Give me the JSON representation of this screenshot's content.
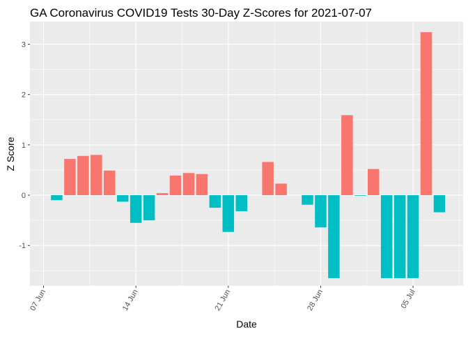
{
  "chart_data": {
    "type": "bar",
    "title": "GA Coronavirus COVID19 Tests 30-Day Z-Scores for 2021-07-07",
    "xlabel": "Date",
    "ylabel": "Z Score",
    "ylim": [
      -1.8,
      3.45
    ],
    "y_ticks": [
      -1,
      0,
      1,
      2,
      3
    ],
    "x_ticks": [
      {
        "label": "07 Jun",
        "index": 0
      },
      {
        "label": "14 Jun",
        "index": 7
      },
      {
        "label": "21 Jun",
        "index": 14
      },
      {
        "label": "28 Jun",
        "index": 21
      },
      {
        "label": "05 Jul",
        "index": 28
      }
    ],
    "dates": [
      "2021-06-08",
      "2021-06-09",
      "2021-06-10",
      "2021-06-11",
      "2021-06-12",
      "2021-06-13",
      "2021-06-14",
      "2021-06-15",
      "2021-06-16",
      "2021-06-17",
      "2021-06-18",
      "2021-06-19",
      "2021-06-20",
      "2021-06-21",
      "2021-06-22",
      "2021-06-23",
      "2021-06-24",
      "2021-06-25",
      "2021-06-26",
      "2021-06-27",
      "2021-06-28",
      "2021-06-29",
      "2021-06-30",
      "2021-07-01",
      "2021-07-02",
      "2021-07-03",
      "2021-07-04",
      "2021-07-05",
      "2021-07-06",
      "2021-07-07"
    ],
    "values": [
      -0.1,
      0.72,
      0.78,
      0.8,
      0.49,
      -0.13,
      -0.55,
      -0.5,
      0.04,
      0.39,
      0.44,
      0.42,
      -0.25,
      -0.73,
      -0.32,
      0,
      0.66,
      0.23,
      0,
      -0.19,
      -0.64,
      -1.65,
      1.59,
      -0.01,
      0.52,
      -1.65,
      -1.65,
      -1.65,
      3.24,
      -0.34
    ],
    "colors": {
      "positive": "#F8766D",
      "negative": "#00BFC4"
    },
    "panel_background": "#EBEBEB",
    "grid": true,
    "legend": "none"
  }
}
